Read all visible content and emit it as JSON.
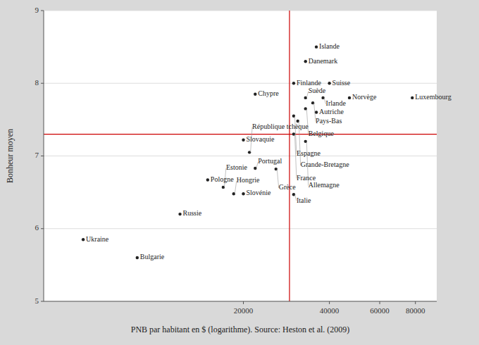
{
  "chart_data": {
    "type": "scatter",
    "xlabel": "PNB par habitant en $ (logarithme). Source: Heston et al. (2009)",
    "ylabel": "Bonheur moyen",
    "labels": [
      "Islande",
      "Danemark",
      "Finlande",
      "Suisse",
      "Chypre",
      "Suède",
      "Irlande",
      "Norvège",
      "Luxembourg",
      "Pays-Bas",
      "Belgique",
      "Autriche",
      "Espagne",
      "Grande-Bretagne",
      "France",
      "Allemagne",
      "Slovaquie",
      "République tchèque",
      "Portugal",
      "Grèce",
      "Pologne",
      "Estonie",
      "Slovénie",
      "Hongrie",
      "Italie",
      "Russie",
      "Ukraine",
      "Bulgarie"
    ],
    "x": [
      36000,
      33000,
      30000,
      40000,
      22000,
      33000,
      38000,
      47000,
      78000,
      35000,
      33000,
      36000,
      30000,
      31000,
      30000,
      33000,
      20000,
      21000,
      22000,
      26000,
      15000,
      17000,
      20000,
      18500,
      30000,
      12000,
      5500,
      8500
    ],
    "values": [
      8.5,
      8.3,
      8.0,
      8.0,
      7.85,
      7.8,
      7.8,
      7.8,
      7.8,
      7.73,
      7.65,
      7.6,
      7.55,
      7.48,
      7.3,
      7.2,
      7.22,
      7.05,
      6.83,
      6.82,
      6.67,
      6.57,
      6.48,
      6.48,
      6.47,
      6.2,
      5.85,
      5.6
    ],
    "color": "#222222",
    "marker": "dot",
    "reference_lines": [
      {
        "axis": "x",
        "value": 29000,
        "color": "#cc0000"
      },
      {
        "axis": "y",
        "value": 7.3,
        "color": "#cc0000"
      }
    ],
    "log": "x",
    "xlim": [
      4000,
      95000
    ],
    "ylim": [
      5.0,
      9.0
    ],
    "xticks": [
      20000,
      40000,
      60000,
      80000
    ],
    "yticks": [
      5,
      6,
      7,
      8,
      9
    ],
    "grid": "y",
    "bg_color": "#d9d9d9",
    "plot_bg_color": "#ffffff"
  }
}
